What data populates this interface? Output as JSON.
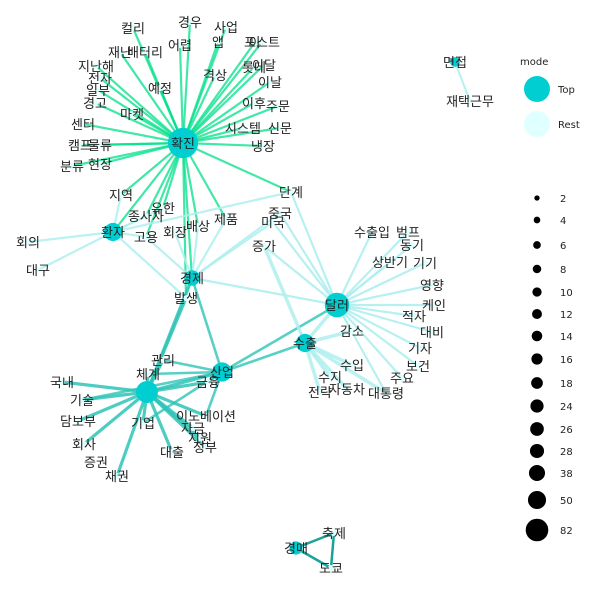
{
  "colors": {
    "top": "#00CED1",
    "rest": "#E0FFFF",
    "edge_light": "#AEEEEE",
    "edge_mid": "#2EC4B6",
    "edge_green": "#00E08A",
    "edge_dark": "#1AA39A"
  },
  "nodes": [
    {
      "id": "확진",
      "mode": "Top",
      "size": 82
    },
    {
      "id": "환자",
      "mode": "Top",
      "size": 24
    },
    {
      "id": "경제",
      "mode": "Top",
      "size": 16
    },
    {
      "id": "달러",
      "mode": "Top",
      "size": 50
    },
    {
      "id": "수출",
      "mode": "Top",
      "size": 24
    },
    {
      "id": "산업",
      "mode": "Top",
      "size": 28
    },
    {
      "id": "증권",
      "mode": "Top",
      "size": 38
    },
    {
      "id": "면접",
      "mode": "Top",
      "size": 4
    },
    {
      "id": "경매",
      "mode": "Top",
      "size": 10
    },
    {
      "id": "컬리",
      "mode": "Rest"
    },
    {
      "id": "경우",
      "mode": "Rest"
    },
    {
      "id": "사업",
      "mode": "Rest"
    },
    {
      "id": "배터리",
      "mode": "Rest"
    },
    {
      "id": "재난",
      "mode": "Rest"
    },
    {
      "id": "어렵",
      "mode": "Rest"
    },
    {
      "id": "앱",
      "mode": "Rest"
    },
    {
      "id": "포스트",
      "mode": "Rest"
    },
    {
      "id": "이달",
      "mode": "Rest"
    },
    {
      "id": "아",
      "mode": "Rest"
    },
    {
      "id": "롯데",
      "mode": "Rest"
    },
    {
      "id": "지난해",
      "mode": "Rest"
    },
    {
      "id": "전자",
      "mode": "Rest"
    },
    {
      "id": "격상",
      "mode": "Rest"
    },
    {
      "id": "이날",
      "mode": "Rest"
    },
    {
      "id": "일부",
      "mode": "Rest"
    },
    {
      "id": "예정",
      "mode": "Rest"
    },
    {
      "id": "경고",
      "mode": "Rest"
    },
    {
      "id": "이후",
      "mode": "Rest"
    },
    {
      "id": "주문",
      "mode": "Rest"
    },
    {
      "id": "마켓",
      "mode": "Rest"
    },
    {
      "id": "센터",
      "mode": "Rest"
    },
    {
      "id": "시스템",
      "mode": "Rest"
    },
    {
      "id": "신문",
      "mode": "Rest"
    },
    {
      "id": "캠프",
      "mode": "Rest"
    },
    {
      "id": "물류",
      "mode": "Rest"
    },
    {
      "id": "냉장",
      "mode": "Rest"
    },
    {
      "id": "분류",
      "mode": "Rest"
    },
    {
      "id": "현장",
      "mode": "Rest"
    },
    {
      "id": "지역",
      "mode": "Rest"
    },
    {
      "id": "단계",
      "mode": "Rest"
    },
    {
      "id": "유한",
      "mode": "Rest"
    },
    {
      "id": "종사자",
      "mode": "Rest"
    },
    {
      "id": "제품",
      "mode": "Rest"
    },
    {
      "id": "중국",
      "mode": "Rest"
    },
    {
      "id": "고용",
      "mode": "Rest"
    },
    {
      "id": "회장",
      "mode": "Rest"
    },
    {
      "id": "배상",
      "mode": "Rest"
    },
    {
      "id": "미국",
      "mode": "Rest"
    },
    {
      "id": "회의",
      "mode": "Rest"
    },
    {
      "id": "증가",
      "mode": "Rest"
    },
    {
      "id": "대구",
      "mode": "Rest"
    },
    {
      "id": "발생",
      "mode": "Rest"
    },
    {
      "id": "수출입",
      "mode": "Rest"
    },
    {
      "id": "범프",
      "mode": "Rest"
    },
    {
      "id": "동기",
      "mode": "Rest"
    },
    {
      "id": "상반기",
      "mode": "Rest"
    },
    {
      "id": "기기",
      "mode": "Rest"
    },
    {
      "id": "영향",
      "mode": "Rest"
    },
    {
      "id": "케인",
      "mode": "Rest"
    },
    {
      "id": "적자",
      "mode": "Rest"
    },
    {
      "id": "대비",
      "mode": "Rest"
    },
    {
      "id": "감소",
      "mode": "Rest"
    },
    {
      "id": "기자",
      "mode": "Rest"
    },
    {
      "id": "보건",
      "mode": "Rest"
    },
    {
      "id": "주요",
      "mode": "Rest"
    },
    {
      "id": "대통령",
      "mode": "Rest"
    },
    {
      "id": "수입",
      "mode": "Rest"
    },
    {
      "id": "수지",
      "mode": "Rest"
    },
    {
      "id": "전략",
      "mode": "Rest"
    },
    {
      "id": "자동차",
      "mode": "Rest"
    },
    {
      "id": "관리",
      "mode": "Rest"
    },
    {
      "id": "체계",
      "mode": "Rest"
    },
    {
      "id": "금융",
      "mode": "Rest"
    },
    {
      "id": "국내",
      "mode": "Rest"
    },
    {
      "id": "기술",
      "mode": "Rest"
    },
    {
      "id": "담보부",
      "mode": "Rest"
    },
    {
      "id": "기업",
      "mode": "Rest"
    },
    {
      "id": "이노베이션",
      "mode": "Rest"
    },
    {
      "id": "자금",
      "mode": "Rest"
    },
    {
      "id": "회사",
      "mode": "Rest"
    },
    {
      "id": "대출",
      "mode": "Rest"
    },
    {
      "id": "지원",
      "mode": "Rest"
    },
    {
      "id": "정부",
      "mode": "Rest"
    },
    {
      "id": "채권",
      "mode": "Rest"
    },
    {
      "id": "재택근무",
      "mode": "Rest"
    },
    {
      "id": "축제",
      "mode": "Rest"
    },
    {
      "id": "도쿄",
      "mode": "Rest"
    }
  ],
  "edges": [
    [
      "확진",
      "컬리"
    ],
    [
      "확진",
      "경우"
    ],
    [
      "확진",
      "사업"
    ],
    [
      "확진",
      "배터리"
    ],
    [
      "확진",
      "재난"
    ],
    [
      "확진",
      "어렵"
    ],
    [
      "확진",
      "앱"
    ],
    [
      "확진",
      "포스트"
    ],
    [
      "확진",
      "이달"
    ],
    [
      "확진",
      "아"
    ],
    [
      "확진",
      "롯데"
    ],
    [
      "확진",
      "지난해"
    ],
    [
      "확진",
      "전자"
    ],
    [
      "확진",
      "격상"
    ],
    [
      "확진",
      "이날"
    ],
    [
      "확진",
      "일부"
    ],
    [
      "확진",
      "예정"
    ],
    [
      "확진",
      "경고"
    ],
    [
      "확진",
      "이후"
    ],
    [
      "확진",
      "주문"
    ],
    [
      "확진",
      "마켓"
    ],
    [
      "확진",
      "센터"
    ],
    [
      "확진",
      "시스템"
    ],
    [
      "확진",
      "신문"
    ],
    [
      "확진",
      "캠프"
    ],
    [
      "확진",
      "물류"
    ],
    [
      "확진",
      "냉장"
    ],
    [
      "확진",
      "분류"
    ],
    [
      "확진",
      "현장"
    ],
    [
      "확진",
      "지역"
    ],
    [
      "확진",
      "단계"
    ],
    [
      "확진",
      "환자"
    ],
    [
      "확진",
      "경제"
    ],
    [
      "확진",
      "유한"
    ],
    [
      "확진",
      "종사자"
    ],
    [
      "확진",
      "제품"
    ],
    [
      "확진",
      "고용"
    ],
    [
      "확진",
      "발생"
    ],
    [
      "확진",
      "배상"
    ],
    [
      "환자",
      "회의"
    ],
    [
      "환자",
      "대구"
    ],
    [
      "환자",
      "지역"
    ],
    [
      "환자",
      "종사자"
    ],
    [
      "환자",
      "고용"
    ],
    [
      "환자",
      "발생"
    ],
    [
      "환자",
      "유한"
    ],
    [
      "환자",
      "단계"
    ],
    [
      "경제",
      "발생"
    ],
    [
      "경제",
      "중국"
    ],
    [
      "경제",
      "미국"
    ],
    [
      "경제",
      "회장"
    ],
    [
      "경제",
      "고용"
    ],
    [
      "경제",
      "제품"
    ],
    [
      "경제",
      "배상"
    ],
    [
      "경제",
      "달러"
    ],
    [
      "경제",
      "증권"
    ],
    [
      "경제",
      "산업"
    ],
    [
      "달러",
      "수출입"
    ],
    [
      "달러",
      "범프"
    ],
    [
      "달러",
      "동기"
    ],
    [
      "달러",
      "상반기"
    ],
    [
      "달러",
      "기기"
    ],
    [
      "달러",
      "영향"
    ],
    [
      "달러",
      "케인"
    ],
    [
      "달러",
      "적자"
    ],
    [
      "달러",
      "대비"
    ],
    [
      "달러",
      "감소"
    ],
    [
      "달러",
      "기자"
    ],
    [
      "달러",
      "보건"
    ],
    [
      "달러",
      "주요"
    ],
    [
      "달러",
      "대통령"
    ],
    [
      "달러",
      "수출"
    ],
    [
      "달러",
      "증가"
    ],
    [
      "달러",
      "미국"
    ],
    [
      "달러",
      "중국"
    ],
    [
      "달러",
      "단계"
    ],
    [
      "달러",
      "산업"
    ],
    [
      "수출",
      "수입"
    ],
    [
      "수출",
      "수지"
    ],
    [
      "수출",
      "전략"
    ],
    [
      "수출",
      "자동차"
    ],
    [
      "수출",
      "산업"
    ],
    [
      "수출",
      "감소"
    ],
    [
      "수출",
      "대통령"
    ],
    [
      "수출",
      "증가"
    ],
    [
      "산업",
      "관리"
    ],
    [
      "산업",
      "금융"
    ],
    [
      "산업",
      "증권"
    ],
    [
      "산업",
      "기업"
    ],
    [
      "산업",
      "이노베이션"
    ],
    [
      "산업",
      "체계"
    ],
    [
      "산업",
      "기술"
    ],
    [
      "증권",
      "국내"
    ],
    [
      "증권",
      "기술"
    ],
    [
      "증권",
      "담보부"
    ],
    [
      "증권",
      "회사"
    ],
    [
      "증권",
      "채권"
    ],
    [
      "증권",
      "기업"
    ],
    [
      "증권",
      "금융"
    ],
    [
      "증권",
      "관리"
    ],
    [
      "증권",
      "체계"
    ],
    [
      "증권",
      "이노베이션"
    ],
    [
      "증권",
      "자금"
    ],
    [
      "증권",
      "대출"
    ],
    [
      "증권",
      "지원"
    ],
    [
      "증권",
      "정부"
    ],
    [
      "증권",
      "발생"
    ],
    [
      "면접",
      "재택근무"
    ],
    [
      "경매",
      "축제"
    ],
    [
      "경매",
      "도쿄"
    ],
    [
      "축제",
      "도쿄"
    ]
  ],
  "legend": {
    "mode_title": "mode",
    "mode_items": [
      {
        "label": "Top",
        "color": "#00CED1"
      },
      {
        "label": "Rest",
        "color": "#E0FFFF"
      }
    ],
    "size_values": [
      2,
      4,
      6,
      8,
      10,
      12,
      14,
      16,
      18,
      24,
      26,
      28,
      38,
      50,
      82
    ]
  }
}
